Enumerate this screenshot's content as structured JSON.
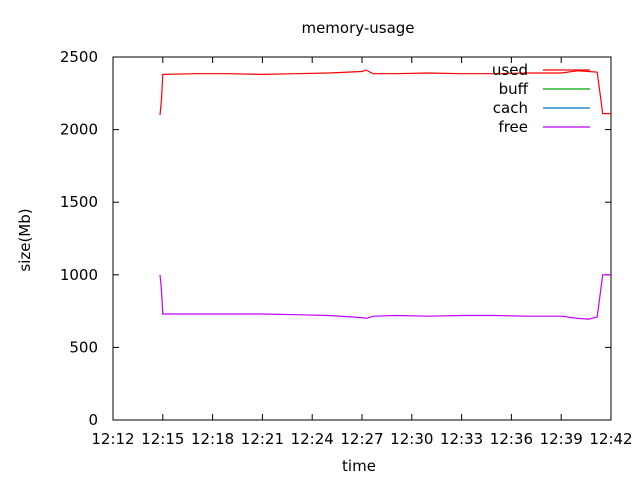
{
  "chart_data": {
    "type": "line",
    "title": "memory-usage",
    "xlabel": "time",
    "ylabel": "size(Mb)",
    "ylim": [
      0,
      2500
    ],
    "yticks": [
      "0",
      "500",
      "1000",
      "1500",
      "2000",
      "2500"
    ],
    "xlim": [
      "12:12",
      "12:42"
    ],
    "xticks": [
      "12:12",
      "12:15",
      "12:18",
      "12:21",
      "12:24",
      "12:27",
      "12:30",
      "12:33",
      "12:36",
      "12:39",
      "12:42"
    ],
    "grid": false,
    "legend_position": "top-right",
    "series": [
      {
        "name": "used",
        "color": "#ff0000",
        "x": [
          "12:14:50",
          "12:14:55",
          "12:15:00",
          "12:17:00",
          "12:19:00",
          "12:21:00",
          "12:23:00",
          "12:25:00",
          "12:27:00",
          "12:27:15",
          "12:27:40",
          "12:29:00",
          "12:31:00",
          "12:33:00",
          "12:35:00",
          "12:37:00",
          "12:39:00",
          "12:40:00",
          "12:40:40",
          "12:41:10",
          "12:41:30",
          "12:42:00"
        ],
        "values": [
          2100,
          2200,
          2380,
          2385,
          2385,
          2380,
          2385,
          2390,
          2400,
          2410,
          2385,
          2385,
          2390,
          2385,
          2385,
          2390,
          2390,
          2405,
          2400,
          2395,
          2110,
          2110
        ]
      },
      {
        "name": "buff",
        "color": "#00a000",
        "x": [],
        "values": []
      },
      {
        "name": "cach",
        "color": "#0070c0",
        "x": [],
        "values": []
      },
      {
        "name": "free",
        "color": "#c000ff",
        "x": [
          "12:14:50",
          "12:14:55",
          "12:15:00",
          "12:17:00",
          "12:19:00",
          "12:21:00",
          "12:23:00",
          "12:25:00",
          "12:27:00",
          "12:27:15",
          "12:27:40",
          "12:29:00",
          "12:31:00",
          "12:33:00",
          "12:35:00",
          "12:37:00",
          "12:39:00",
          "12:40:00",
          "12:40:40",
          "12:41:10",
          "12:41:30",
          "12:42:00"
        ],
        "values": [
          1000,
          900,
          730,
          730,
          730,
          730,
          725,
          720,
          705,
          700,
          715,
          720,
          715,
          720,
          720,
          715,
          715,
          700,
          695,
          710,
          1000,
          1000
        ]
      }
    ]
  }
}
